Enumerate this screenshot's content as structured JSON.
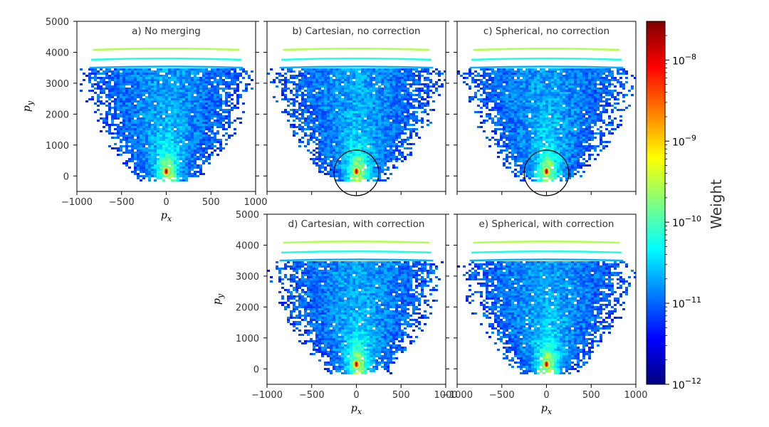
{
  "figure": {
    "colorbar_label": "Weight"
  },
  "chart_data": [
    {
      "id": "a",
      "type": "heatmap",
      "title": "a) No merging",
      "xlabel": "p_x",
      "ylabel": "p_y",
      "xlim": [
        -1000,
        1000
      ],
      "ylim": [
        -500,
        5000
      ],
      "xticks": [
        "−1000",
        "−500",
        "0",
        "500",
        "1000"
      ],
      "yticks": [
        "0",
        "1000",
        "2000",
        "3000",
        "4000",
        "5000"
      ],
      "circle": null
    },
    {
      "id": "b",
      "type": "heatmap",
      "title": "b) Cartesian, no correction",
      "xlabel": "",
      "ylabel": "",
      "xlim": [
        -1000,
        1000
      ],
      "ylim": [
        -500,
        5000
      ],
      "xticks": [],
      "yticks": [],
      "circle": {
        "cx": 0,
        "cy": 100,
        "r": 250
      }
    },
    {
      "id": "c",
      "type": "heatmap",
      "title": "c) Spherical, no correction",
      "xlabel": "",
      "ylabel": "",
      "xlim": [
        -1000,
        1000
      ],
      "ylim": [
        -500,
        5000
      ],
      "xticks": [],
      "yticks": [],
      "circle": {
        "cx": 0,
        "cy": 100,
        "r": 250
      }
    },
    {
      "id": "d",
      "type": "heatmap",
      "title": "d) Cartesian, with correction",
      "xlabel": "p_x",
      "ylabel": "p_y",
      "xlim": [
        -1000,
        1000
      ],
      "ylim": [
        -500,
        5000
      ],
      "xticks": [
        "−1000",
        "−500",
        "0",
        "500",
        "1000"
      ],
      "yticks": [
        "0",
        "1000",
        "2000",
        "3000",
        "4000",
        "5000"
      ],
      "circle": null
    },
    {
      "id": "e",
      "type": "heatmap",
      "title": "e) Spherical, with correction",
      "xlabel": "p_x",
      "ylabel": "",
      "xlim": [
        -1000,
        1000
      ],
      "ylim": [
        -500,
        5000
      ],
      "xticks": [
        "−1000",
        "−500",
        "0",
        "500",
        "1000"
      ],
      "yticks": [],
      "circle": null
    }
  ],
  "colorbar": {
    "label": "Weight",
    "scale": "log",
    "range": [
      1e-12,
      3e-08
    ],
    "ticks": [
      {
        "value": 1e-08,
        "base": "10",
        "exp": "−8"
      },
      {
        "value": 1e-09,
        "base": "10",
        "exp": "−9"
      },
      {
        "value": 1e-10,
        "base": "10",
        "exp": "−10"
      },
      {
        "value": 1e-11,
        "base": "10",
        "exp": "−11"
      },
      {
        "value": 1e-12,
        "base": "10",
        "exp": "−12"
      }
    ],
    "colors": [
      "#00007f",
      "#0000ff",
      "#007fff",
      "#00ffff",
      "#7fff7f",
      "#ffff00",
      "#ff7f00",
      "#ff0000",
      "#7f0000"
    ]
  }
}
